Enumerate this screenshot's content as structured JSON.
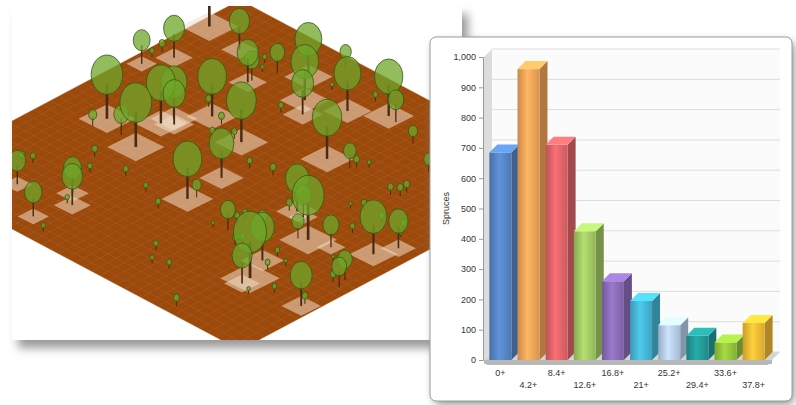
{
  "chart_data": {
    "type": "bar",
    "y_label": "Spruces",
    "categories": [
      "0+",
      "4.2+",
      "8.4+",
      "12.6+",
      "16.8+",
      "21+",
      "25.2+",
      "29.4+",
      "33.6+",
      "37.8+"
    ],
    "values": [
      685,
      960,
      710,
      425,
      260,
      195,
      115,
      80,
      58,
      122
    ],
    "colors": [
      "#5585c5",
      "#f3a458",
      "#e06468",
      "#a2c964",
      "#8a6cb8",
      "#45b6d6",
      "#b8cde9",
      "#229a98",
      "#94c43c",
      "#f0bb35"
    ],
    "ylim": [
      0,
      1000
    ],
    "yticks": [
      0,
      100,
      200,
      300,
      400,
      500,
      600,
      700,
      800,
      900,
      {
        "value": 1000,
        "label": "1,000"
      }
    ],
    "grid": true
  }
}
